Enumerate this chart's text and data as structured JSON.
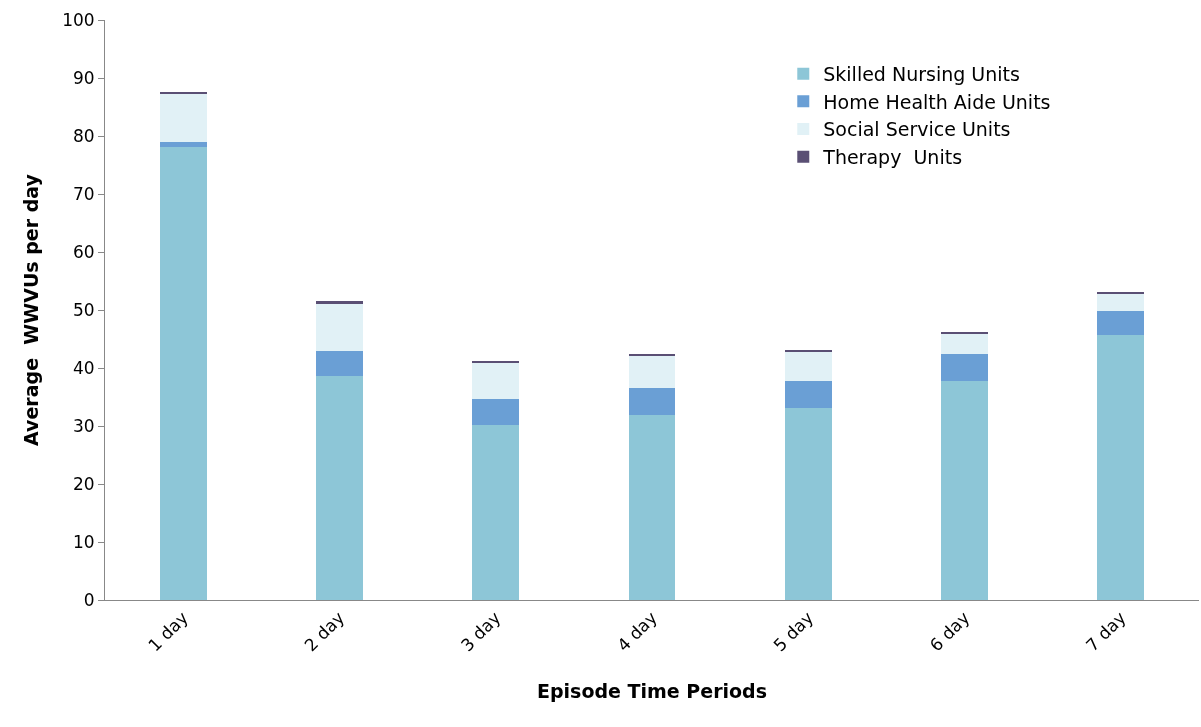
{
  "chart_data": {
    "type": "bar",
    "stacked": true,
    "xlabel": "Episode Time Periods",
    "ylabel": "Average  WWVUs per day",
    "categories": [
      "1 day",
      "2 day",
      "3 day",
      "4 day",
      "5 day",
      "6 day",
      "7 day"
    ],
    "series": [
      {
        "name": "Skilled Nursing Units",
        "color": "#8dc6d7",
        "values": [
          78.1,
          38.6,
          30.1,
          31.9,
          33.1,
          37.7,
          45.7
        ]
      },
      {
        "name": "Home Health Aide Units",
        "color": "#6a9fd5",
        "values": [
          0.9,
          4.4,
          4.6,
          4.7,
          4.7,
          4.7,
          4.1
        ]
      },
      {
        "name": "Social Service Units",
        "color": "#e1f1f6",
        "values": [
          8.3,
          8.2,
          6.1,
          5.5,
          5.0,
          3.5,
          3.0
        ]
      },
      {
        "name": "Therapy  Units",
        "color": "#5a4f74",
        "values": [
          0.3,
          0.3,
          0.4,
          0.4,
          0.3,
          0.3,
          0.3
        ]
      }
    ],
    "ylim": [
      0,
      100
    ],
    "yticks": [
      0,
      10,
      20,
      30,
      40,
      50,
      60,
      70,
      80,
      90,
      100
    ],
    "grid": false,
    "legend": "top right"
  }
}
